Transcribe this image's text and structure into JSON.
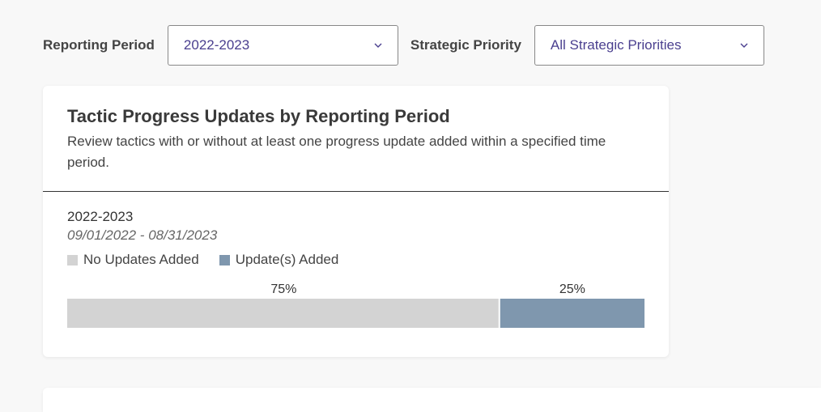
{
  "filters": {
    "period_label": "Reporting Period",
    "period_value": "2022-2023",
    "priority_label": "Strategic Priority",
    "priority_value": "All Strategic Priorities"
  },
  "card": {
    "title": "Tactic Progress Updates by Reporting Period",
    "subtitle": "Review tactics with or without at least one progress update added within a specified time period.",
    "period_name": "2022-2023",
    "period_range": "09/01/2022 - 08/31/2023"
  },
  "chart_data": {
    "type": "bar",
    "orientation": "horizontal-stacked",
    "series": [
      {
        "name": "No Updates Added",
        "values": [
          75
        ],
        "label": "75%",
        "color": "#d3d3d3"
      },
      {
        "name": "Update(s) Added",
        "values": [
          25
        ],
        "label": "25%",
        "color": "#7f97ae"
      }
    ],
    "unit": "%",
    "xlim": [
      0,
      100
    ],
    "legend_position": "top-left",
    "grid": false
  },
  "icons": {
    "dropdown": "chevron-down-icon"
  }
}
